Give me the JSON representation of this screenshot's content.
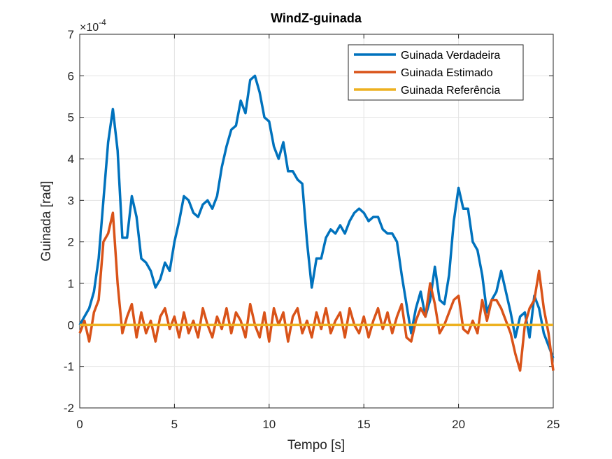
{
  "chart_data": {
    "type": "line",
    "title": "WindZ-guinada",
    "xlabel": "Tempo [s]",
    "ylabel": "Guinada [rad]",
    "y_multiplier": {
      "base": "×10",
      "exponent": "-4"
    },
    "x": [
      0,
      0.25,
      0.5,
      0.75,
      1,
      1.25,
      1.5,
      1.75,
      2,
      2.25,
      2.5,
      2.75,
      3,
      3.25,
      3.5,
      3.75,
      4,
      4.25,
      4.5,
      4.75,
      5,
      5.25,
      5.5,
      5.75,
      6,
      6.25,
      6.5,
      6.75,
      7,
      7.25,
      7.5,
      7.75,
      8,
      8.25,
      8.5,
      8.75,
      9,
      9.25,
      9.5,
      9.75,
      10,
      10.25,
      10.5,
      10.75,
      11,
      11.25,
      11.5,
      11.75,
      12,
      12.25,
      12.5,
      12.75,
      13,
      13.25,
      13.5,
      13.75,
      14,
      14.25,
      14.5,
      14.75,
      15,
      15.25,
      15.5,
      15.75,
      16,
      16.25,
      16.5,
      16.75,
      17,
      17.25,
      17.5,
      17.75,
      18,
      18.25,
      18.5,
      18.75,
      19,
      19.25,
      19.5,
      19.75,
      20,
      20.25,
      20.5,
      20.75,
      21,
      21.25,
      21.5,
      21.75,
      22,
      22.25,
      22.5,
      22.75,
      23,
      23.25,
      23.5,
      23.75,
      24,
      24.25,
      24.5,
      24.75,
      25
    ],
    "series": [
      {
        "name": "Guinada Verdadeira",
        "color": "#0072BD",
        "values": [
          0,
          0.2,
          0.4,
          0.8,
          1.6,
          3.0,
          4.4,
          5.2,
          4.2,
          2.1,
          2.1,
          3.1,
          2.6,
          1.6,
          1.5,
          1.3,
          0.9,
          1.1,
          1.5,
          1.3,
          2.0,
          2.5,
          3.1,
          3.0,
          2.7,
          2.6,
          2.9,
          3.0,
          2.8,
          3.1,
          3.8,
          4.3,
          4.7,
          4.8,
          5.4,
          5.1,
          5.9,
          6.0,
          5.6,
          5.0,
          4.9,
          4.3,
          4.0,
          4.4,
          3.7,
          3.7,
          3.5,
          3.4,
          2.0,
          0.9,
          1.6,
          1.6,
          2.1,
          2.3,
          2.2,
          2.4,
          2.2,
          2.5,
          2.7,
          2.8,
          2.7,
          2.5,
          2.6,
          2.6,
          2.3,
          2.2,
          2.2,
          2.0,
          1.2,
          0.5,
          -0.2,
          0.4,
          0.8,
          0.2,
          0.6,
          1.4,
          0.6,
          0.5,
          1.2,
          2.5,
          3.3,
          2.8,
          2.8,
          2.0,
          1.8,
          1.2,
          0.3,
          0.6,
          0.8,
          1.3,
          0.8,
          0.3,
          -0.3,
          0.2,
          0.3,
          -0.3,
          0.7,
          0.4,
          -0.2,
          -0.5,
          -0.8
        ]
      },
      {
        "name": "Guinada Estimado",
        "color": "#D95319",
        "values": [
          -0.2,
          0.1,
          -0.4,
          0.3,
          0.6,
          2.0,
          2.2,
          2.7,
          1.0,
          -0.2,
          0.2,
          0.5,
          -0.3,
          0.3,
          -0.2,
          0.1,
          -0.4,
          0.2,
          0.4,
          -0.1,
          0.2,
          -0.3,
          0.3,
          -0.2,
          0.1,
          -0.3,
          0.4,
          0.0,
          -0.3,
          0.2,
          -0.1,
          0.4,
          -0.2,
          0.3,
          0.1,
          -0.3,
          0.5,
          0.0,
          -0.3,
          0.3,
          -0.4,
          0.4,
          0.0,
          0.3,
          -0.4,
          0.2,
          0.4,
          -0.2,
          0.1,
          -0.3,
          0.3,
          -0.1,
          0.4,
          -0.2,
          0.1,
          0.3,
          -0.3,
          0.4,
          0.0,
          -0.2,
          0.2,
          -0.3,
          0.1,
          0.4,
          -0.1,
          0.3,
          -0.2,
          0.2,
          0.5,
          -0.3,
          -0.4,
          0.1,
          0.4,
          0.2,
          1.0,
          0.5,
          -0.2,
          0.0,
          0.3,
          0.6,
          0.7,
          -0.1,
          -0.2,
          0.1,
          -0.2,
          0.6,
          0.1,
          0.6,
          0.6,
          0.4,
          0.1,
          -0.2,
          -0.7,
          -1.1,
          0.0,
          0.4,
          0.6,
          1.3,
          0.4,
          -0.2,
          -1.1
        ]
      },
      {
        "name": "Guinada Referência",
        "color": "#EDB120",
        "values": [
          0,
          0,
          0,
          0,
          0,
          0,
          0,
          0,
          0,
          0,
          0,
          0,
          0,
          0,
          0,
          0,
          0,
          0,
          0,
          0,
          0,
          0,
          0,
          0,
          0,
          0,
          0,
          0,
          0,
          0,
          0,
          0,
          0,
          0,
          0,
          0,
          0,
          0,
          0,
          0,
          0,
          0,
          0,
          0,
          0,
          0,
          0,
          0,
          0,
          0,
          0,
          0,
          0,
          0,
          0,
          0,
          0,
          0,
          0,
          0,
          0,
          0,
          0,
          0,
          0,
          0,
          0,
          0,
          0,
          0,
          0,
          0,
          0,
          0,
          0,
          0,
          0,
          0,
          0,
          0,
          0,
          0,
          0,
          0,
          0,
          0,
          0,
          0,
          0,
          0,
          0,
          0,
          0,
          0,
          0,
          0,
          0,
          0,
          0,
          0,
          0
        ]
      }
    ],
    "xlim": [
      0,
      25
    ],
    "xticks": [
      0,
      5,
      10,
      15,
      20,
      25
    ],
    "ylim": [
      -2,
      7
    ],
    "yticks": [
      -2,
      -1,
      0,
      1,
      2,
      3,
      4,
      5,
      6,
      7
    ],
    "grid": true,
    "legend": "northeast"
  }
}
